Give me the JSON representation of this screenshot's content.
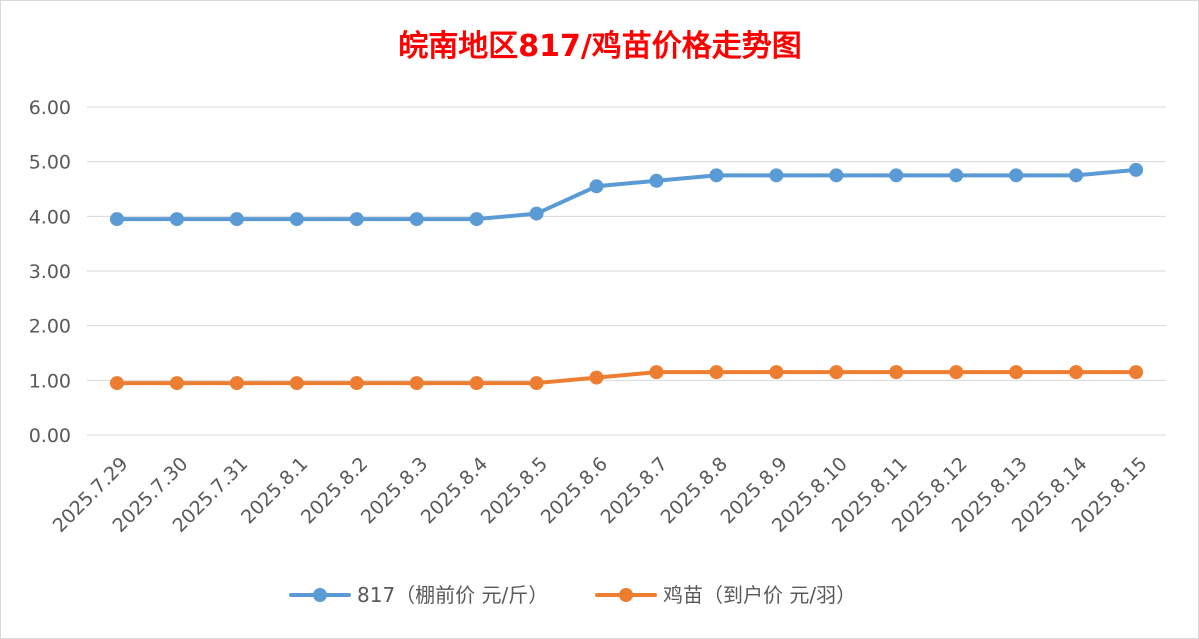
{
  "chart_data": {
    "type": "line",
    "title": "皖南地区817/鸡苗价格走势图",
    "categories": [
      "2025.7.29",
      "2025.7.30",
      "2025.7.31",
      "2025.8.1",
      "2025.8.2",
      "2025.8.3",
      "2025.8.4",
      "2025.8.5",
      "2025.8.6",
      "2025.8.7",
      "2025.8.8",
      "2025.8.9",
      "2025.8.10",
      "2025.8.11",
      "2025.8.12",
      "2025.8.13",
      "2025.8.14",
      "2025.8.15"
    ],
    "series": [
      {
        "name": "817（棚前价 元/斤）",
        "color": "#5b9bd5",
        "values": [
          3.95,
          3.95,
          3.95,
          3.95,
          3.95,
          3.95,
          3.95,
          4.05,
          4.55,
          4.65,
          4.75,
          4.75,
          4.75,
          4.75,
          4.75,
          4.75,
          4.75,
          4.85
        ]
      },
      {
        "name": "鸡苗（到户价 元/羽）",
        "color": "#ed7d31",
        "values": [
          0.95,
          0.95,
          0.95,
          0.95,
          0.95,
          0.95,
          0.95,
          0.95,
          1.05,
          1.15,
          1.15,
          1.15,
          1.15,
          1.15,
          1.15,
          1.15,
          1.15,
          1.15
        ]
      }
    ],
    "yticks": [
      "0.00",
      "1.00",
      "2.00",
      "3.00",
      "4.00",
      "5.00",
      "6.00"
    ],
    "ylim": [
      0,
      6
    ],
    "xlabel": "",
    "ylabel": "",
    "grid": true,
    "legend_position": "bottom",
    "title_color": "#ff0000"
  }
}
